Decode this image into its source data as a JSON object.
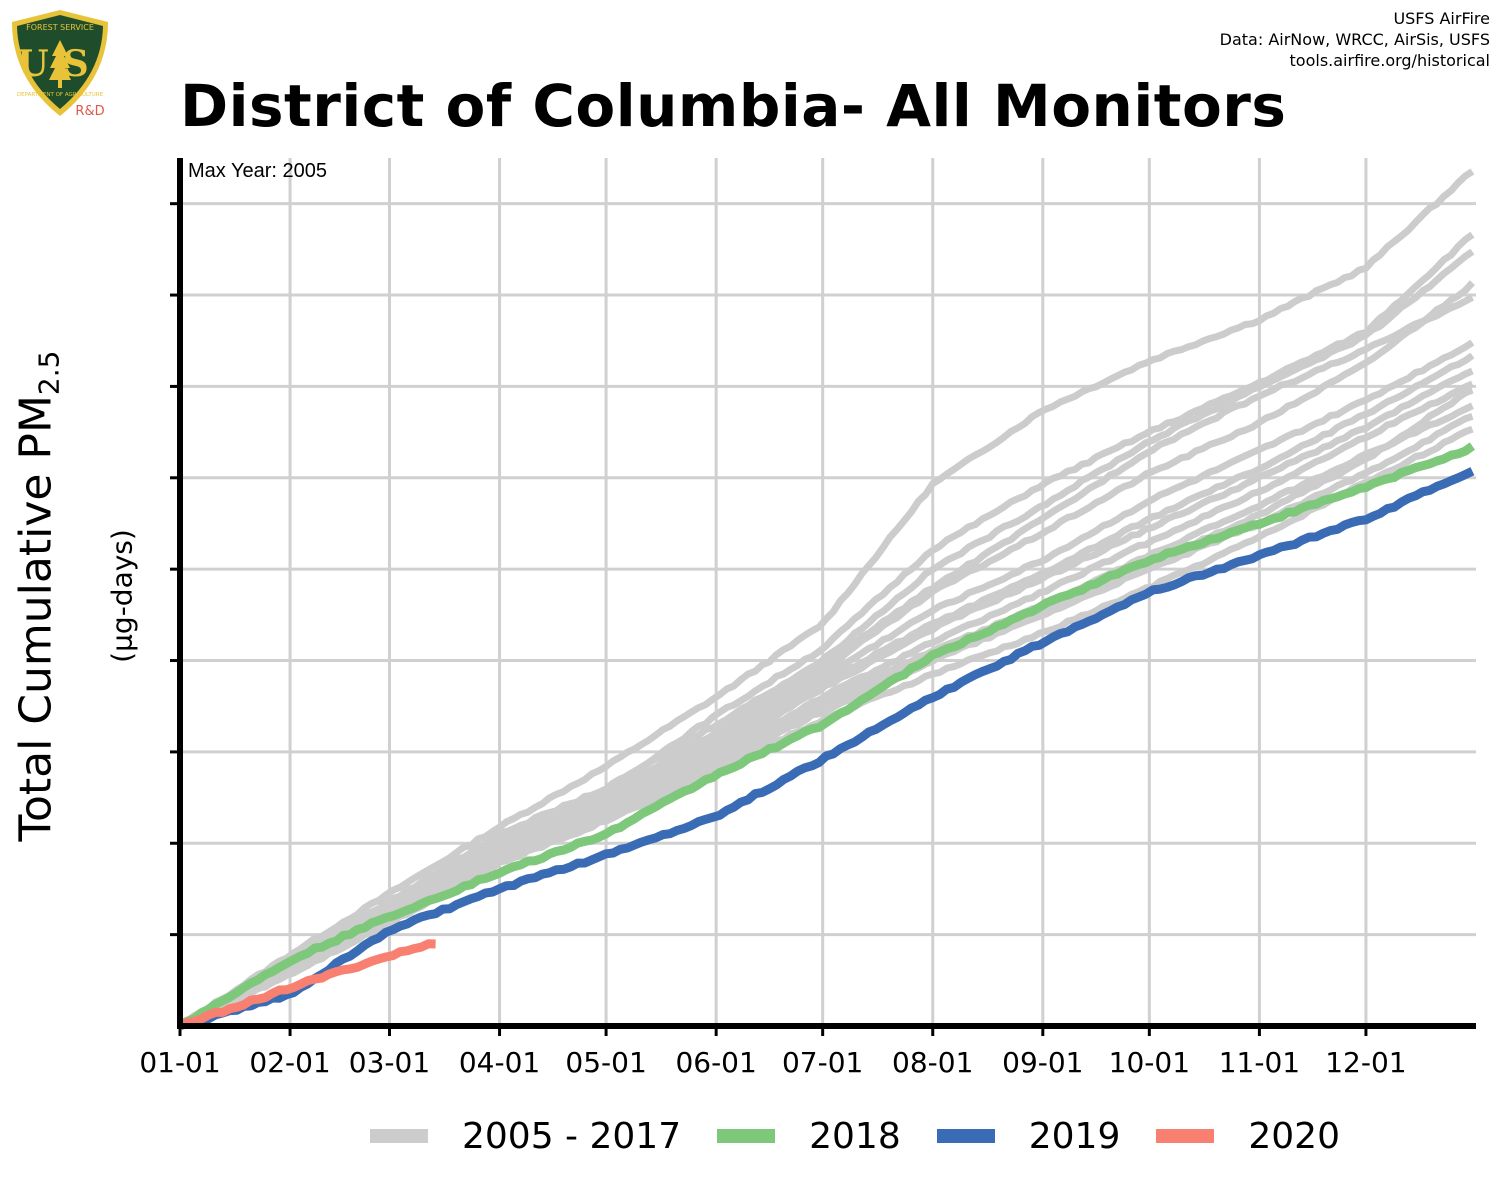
{
  "header": {
    "title": "District of Columbia- All Monitors",
    "credits": [
      "USFS AirFire",
      "Data: AirNow, WRCC, AirSis, USFS",
      "tools.airfire.org/historical"
    ]
  },
  "logo": {
    "icon": "usfs-shield-icon",
    "text_top": "FOREST SERVICE",
    "text_main": "US",
    "text_bottom": "DEPARTMENT OF AGRICULTURE",
    "badge": "R&D",
    "colors": {
      "shield": "#1f4d2b",
      "border": "#e8c33a",
      "badge": "#e05a4a"
    }
  },
  "annotation": {
    "max_year": "Max Year: 2005"
  },
  "chart_data": {
    "type": "line",
    "title": "District of Columbia- All Monitors",
    "xlabel": "",
    "ylabel": "Total Cumulative PM",
    "ylabel_sub": "2.5",
    "yunit": "(µg-days)",
    "x_ticks": [
      "01-01",
      "02-01",
      "03-01",
      "04-01",
      "05-01",
      "06-01",
      "07-01",
      "08-01",
      "09-01",
      "10-01",
      "11-01",
      "12-01"
    ],
    "x_tick_days": [
      1,
      32,
      60,
      91,
      121,
      152,
      182,
      213,
      244,
      274,
      305,
      335
    ],
    "xlim_days": [
      1,
      366
    ],
    "y_tick_labels": "none",
    "y_tick_count": 10,
    "ylim": [
      0,
      9.5
    ],
    "grid": true,
    "legend_position": "bottom",
    "series": [
      {
        "name": "2005 - 2017",
        "color": "#cccccc",
        "group": "historical",
        "x": [
          1,
          32,
          60,
          91,
          121,
          152,
          182,
          213,
          244,
          274,
          305,
          335,
          366
        ],
        "values": [
          0,
          0.78,
          1.45,
          2.18,
          2.84,
          3.6,
          4.4,
          5.93,
          6.74,
          7.28,
          7.73,
          8.3,
          9.4
        ]
      },
      {
        "name": "",
        "color": "#cccccc",
        "group": "historical",
        "x": [
          1,
          32,
          60,
          91,
          121,
          152,
          182,
          213,
          244,
          274,
          305,
          335,
          366
        ],
        "values": [
          0,
          0.72,
          1.33,
          2.08,
          2.58,
          3.4,
          4.13,
          5.22,
          5.93,
          6.5,
          7.04,
          7.6,
          8.7
        ]
      },
      {
        "name": "",
        "color": "#cccccc",
        "group": "historical",
        "x": [
          1,
          32,
          60,
          91,
          121,
          152,
          182,
          213,
          244,
          274,
          305,
          335,
          366
        ],
        "values": [
          0,
          0.74,
          1.36,
          2.1,
          2.6,
          3.3,
          4.0,
          5.0,
          5.7,
          6.4,
          7.0,
          7.55,
          8.5
        ]
      },
      {
        "name": "",
        "color": "#cccccc",
        "group": "historical",
        "x": [
          1,
          32,
          60,
          91,
          121,
          152,
          182,
          213,
          244,
          274,
          305,
          335,
          366
        ],
        "values": [
          0,
          0.68,
          1.3,
          2.0,
          2.5,
          3.15,
          3.9,
          4.75,
          5.4,
          6.05,
          6.6,
          7.25,
          8.15
        ]
      },
      {
        "name": "",
        "color": "#cccccc",
        "group": "historical",
        "x": [
          1,
          32,
          60,
          91,
          121,
          152,
          182,
          213,
          244,
          274,
          305,
          335,
          366
        ],
        "values": [
          0,
          0.7,
          1.32,
          2.02,
          2.55,
          3.2,
          3.95,
          4.8,
          5.55,
          6.3,
          6.9,
          7.4,
          8.0
        ]
      },
      {
        "name": "",
        "color": "#cccccc",
        "group": "historical",
        "x": [
          1,
          32,
          60,
          91,
          121,
          152,
          182,
          213,
          244,
          274,
          305,
          335,
          366
        ],
        "values": [
          0,
          0.66,
          1.28,
          1.98,
          2.48,
          3.1,
          3.82,
          4.55,
          5.1,
          5.75,
          6.3,
          6.85,
          7.5
        ]
      },
      {
        "name": "",
        "color": "#cccccc",
        "group": "historical",
        "x": [
          1,
          32,
          60,
          91,
          121,
          152,
          182,
          213,
          244,
          274,
          305,
          335,
          366
        ],
        "values": [
          0,
          0.65,
          1.25,
          1.95,
          2.45,
          3.05,
          3.75,
          4.4,
          4.95,
          5.55,
          6.1,
          6.7,
          7.35
        ]
      },
      {
        "name": "",
        "color": "#cccccc",
        "group": "historical",
        "x": [
          1,
          32,
          60,
          91,
          121,
          152,
          182,
          213,
          244,
          274,
          305,
          335,
          366
        ],
        "values": [
          0,
          0.64,
          1.22,
          1.9,
          2.4,
          3.0,
          3.7,
          4.35,
          4.9,
          5.45,
          6.0,
          6.55,
          7.2
        ]
      },
      {
        "name": "",
        "color": "#cccccc",
        "group": "historical",
        "x": [
          1,
          32,
          60,
          91,
          121,
          152,
          182,
          213,
          244,
          274,
          305,
          335,
          366
        ],
        "values": [
          0,
          0.62,
          1.2,
          1.88,
          2.36,
          2.95,
          3.6,
          4.2,
          4.75,
          5.3,
          5.85,
          6.45,
          7.05
        ]
      },
      {
        "name": "",
        "color": "#cccccc",
        "group": "historical",
        "x": [
          1,
          32,
          60,
          91,
          121,
          152,
          182,
          213,
          244,
          274,
          305,
          335,
          366
        ],
        "values": [
          0,
          0.6,
          1.18,
          1.85,
          2.32,
          2.9,
          3.55,
          4.1,
          4.6,
          5.15,
          5.7,
          6.25,
          6.8
        ]
      },
      {
        "name": "",
        "color": "#cccccc",
        "group": "historical",
        "x": [
          1,
          32,
          60,
          91,
          121,
          152,
          182,
          213,
          244,
          274,
          305,
          335,
          366
        ],
        "values": [
          0,
          0.6,
          1.17,
          1.82,
          2.3,
          2.88,
          3.5,
          4.05,
          4.55,
          5.05,
          5.6,
          6.2,
          7.0
        ]
      },
      {
        "name": "",
        "color": "#cccccc",
        "group": "historical",
        "x": [
          1,
          32,
          60,
          91,
          121,
          152,
          182,
          213,
          244,
          274,
          305,
          335,
          366
        ],
        "values": [
          0,
          0.58,
          1.15,
          1.8,
          2.28,
          2.85,
          3.45,
          4.0,
          4.5,
          5.0,
          5.5,
          6.05,
          6.7
        ]
      },
      {
        "name": "",
        "color": "#cccccc",
        "group": "historical",
        "x": [
          1,
          32,
          60,
          91,
          121,
          152,
          182,
          213,
          244,
          274,
          305,
          335,
          366
        ],
        "values": [
          0,
          0.57,
          1.13,
          1.78,
          2.25,
          2.8,
          3.35,
          3.85,
          4.3,
          4.8,
          5.35,
          5.95,
          6.55
        ]
      },
      {
        "name": "2018",
        "color": "#7dc87a",
        "group": "2018",
        "x": [
          1,
          32,
          60,
          91,
          121,
          152,
          182,
          213,
          244,
          274,
          305,
          335,
          366
        ],
        "values": [
          0,
          0.72,
          1.2,
          1.68,
          2.1,
          2.75,
          3.3,
          4.05,
          4.6,
          5.1,
          5.5,
          5.9,
          6.35
        ]
      },
      {
        "name": "2019",
        "color": "#3a6bb5",
        "group": "2019",
        "x": [
          1,
          32,
          60,
          91,
          121,
          152,
          182,
          213,
          244,
          274,
          305,
          335,
          366
        ],
        "values": [
          0,
          0.35,
          1.05,
          1.5,
          1.87,
          2.3,
          2.92,
          3.6,
          4.2,
          4.75,
          5.15,
          5.55,
          6.1
        ]
      },
      {
        "name": "2020",
        "color": "#f88070",
        "group": "2020",
        "x": [
          1,
          32,
          60,
          74
        ],
        "values": [
          0,
          0.42,
          0.77,
          0.92
        ]
      }
    ]
  },
  "legend": {
    "items": [
      {
        "label": "2005 - 2017",
        "color": "#cccccc"
      },
      {
        "label": "2018",
        "color": "#7dc87a"
      },
      {
        "label": "2019",
        "color": "#3a6bb5"
      },
      {
        "label": "2020",
        "color": "#f88070"
      }
    ]
  }
}
